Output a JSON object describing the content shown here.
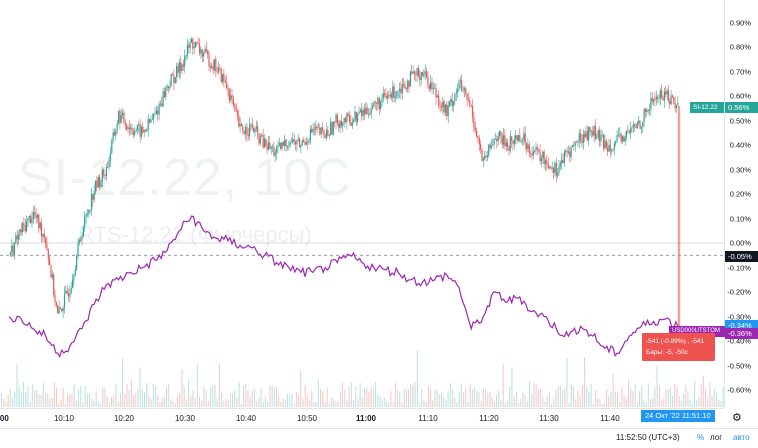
{
  "watermark": {
    "symbol": "SI-12.22, 10C",
    "subtitle": "RTS-12.22 (Фьючерсы)"
  },
  "y_axis": {
    "ticks": [
      "0.90%",
      "0.80%",
      "0.70%",
      "0.60%",
      "0.50%",
      "0.40%",
      "0.30%",
      "0.20%",
      "0.10%",
      "0.00%",
      "-0.10%",
      "-0.20%",
      "-0.30%",
      "-0.40%",
      "-0.50%",
      "-0.60%"
    ],
    "tick_values": [
      0.9,
      0.8,
      0.7,
      0.6,
      0.5,
      0.4,
      0.3,
      0.2,
      0.1,
      0,
      -0.1,
      -0.2,
      -0.3,
      -0.4,
      -0.5,
      -0.6
    ]
  },
  "x_axis": {
    "ticks": [
      {
        "label": ":00",
        "bold": true
      },
      {
        "label": "10:10",
        "bold": false
      },
      {
        "label": "10:20",
        "bold": false
      },
      {
        "label": "10:30",
        "bold": false
      },
      {
        "label": "10:40",
        "bold": false
      },
      {
        "label": "10:50",
        "bold": false
      },
      {
        "label": "11:00",
        "bold": true
      },
      {
        "label": "11:10",
        "bold": false
      },
      {
        "label": "11:20",
        "bold": false
      },
      {
        "label": "11:30",
        "bold": false
      },
      {
        "label": "11:40",
        "bold": false
      }
    ],
    "crosshair_label": "24 Окт '22   11:51:10"
  },
  "badges": {
    "main_symbol": "SI-12.22",
    "main_value": "0.56%",
    "crosshair_value": "-0.05%",
    "compare_symbol": "USD000UTSTOM",
    "compare_value": "-0.34%",
    "compare_value2": "-0.36%"
  },
  "tooltip": {
    "line1": "-541 (-0.89%) , -541",
    "line2": "Бары: -5, -50с"
  },
  "bottom_bar": {
    "time": "11:52:50 (UTC+3)",
    "percent": "%",
    "log": "лог",
    "auto": "авто"
  },
  "colors": {
    "up": "#26a69a",
    "down": "#ef5350",
    "compare": "#9c27b0",
    "accent": "#2196f3",
    "crosshair_badge": "#131722"
  },
  "chart_data": {
    "type": "line",
    "series": [
      {
        "name": "SI-12.22",
        "style": "candles",
        "x": [
          "10:01",
          "10:03",
          "10:05",
          "10:07",
          "10:09",
          "10:11",
          "10:13",
          "10:15",
          "10:17",
          "10:19",
          "10:21",
          "10:23",
          "10:25",
          "10:27",
          "10:29",
          "10:31",
          "10:33",
          "10:35",
          "10:37",
          "10:39",
          "10:41",
          "10:43",
          "10:45",
          "10:47",
          "10:49",
          "10:51",
          "10:53",
          "10:55",
          "10:57",
          "10:59",
          "11:01",
          "11:03",
          "11:05",
          "11:07",
          "11:09",
          "11:11",
          "11:13",
          "11:15",
          "11:17",
          "11:19",
          "11:21",
          "11:23",
          "11:25",
          "11:27",
          "11:29",
          "11:31",
          "11:33",
          "11:35",
          "11:37",
          "11:39",
          "11:41",
          "11:43",
          "11:45",
          "11:47",
          "11:49",
          "11:51"
        ],
        "values": [
          -0.05,
          0.05,
          0.12,
          0.02,
          -0.3,
          -0.18,
          0.05,
          0.22,
          0.3,
          0.52,
          0.47,
          0.45,
          0.52,
          0.64,
          0.71,
          0.82,
          0.77,
          0.72,
          0.63,
          0.46,
          0.47,
          0.4,
          0.37,
          0.42,
          0.4,
          0.46,
          0.44,
          0.5,
          0.5,
          0.53,
          0.56,
          0.59,
          0.63,
          0.67,
          0.7,
          0.62,
          0.53,
          0.65,
          0.55,
          0.32,
          0.44,
          0.4,
          0.44,
          0.38,
          0.34,
          0.3,
          0.37,
          0.43,
          0.46,
          0.4,
          0.41,
          0.45,
          0.5,
          0.59,
          0.61,
          0.56
        ]
      },
      {
        "name": "USD000UTSTOM",
        "style": "line",
        "x": [
          "10:01",
          "10:03",
          "10:05",
          "10:07",
          "10:09",
          "10:11",
          "10:13",
          "10:15",
          "10:17",
          "10:19",
          "10:21",
          "10:23",
          "10:25",
          "10:27",
          "10:29",
          "10:31",
          "10:33",
          "10:35",
          "10:37",
          "10:39",
          "10:41",
          "10:43",
          "10:45",
          "10:47",
          "10:49",
          "10:51",
          "10:53",
          "10:55",
          "10:57",
          "10:59",
          "11:01",
          "11:03",
          "11:05",
          "11:07",
          "11:09",
          "11:11",
          "11:13",
          "11:15",
          "11:17",
          "11:19",
          "11:21",
          "11:23",
          "11:25",
          "11:27",
          "11:29",
          "11:31",
          "11:33",
          "11:35",
          "11:37",
          "11:39",
          "11:41",
          "11:43",
          "11:45",
          "11:47",
          "11:49",
          "11:51"
        ],
        "values": [
          -0.3,
          -0.31,
          -0.35,
          -0.38,
          -0.45,
          -0.42,
          -0.35,
          -0.25,
          -0.17,
          -0.15,
          -0.12,
          -0.1,
          -0.07,
          -0.03,
          0.05,
          0.11,
          0.05,
          0.02,
          0.01,
          -0.01,
          -0.02,
          -0.05,
          -0.08,
          -0.1,
          -0.12,
          -0.12,
          -0.1,
          -0.08,
          -0.05,
          -0.08,
          -0.1,
          -0.11,
          -0.12,
          -0.15,
          -0.16,
          -0.15,
          -0.13,
          -0.18,
          -0.35,
          -0.3,
          -0.2,
          -0.24,
          -0.22,
          -0.28,
          -0.3,
          -0.35,
          -0.38,
          -0.34,
          -0.38,
          -0.43,
          -0.45,
          -0.38,
          -0.34,
          -0.32,
          -0.31,
          -0.34
        ]
      }
    ],
    "ylim": [
      -0.65,
      0.97
    ],
    "volume_note": "volume bars along bottom",
    "grid": false,
    "legend": "right-axis-badges"
  }
}
